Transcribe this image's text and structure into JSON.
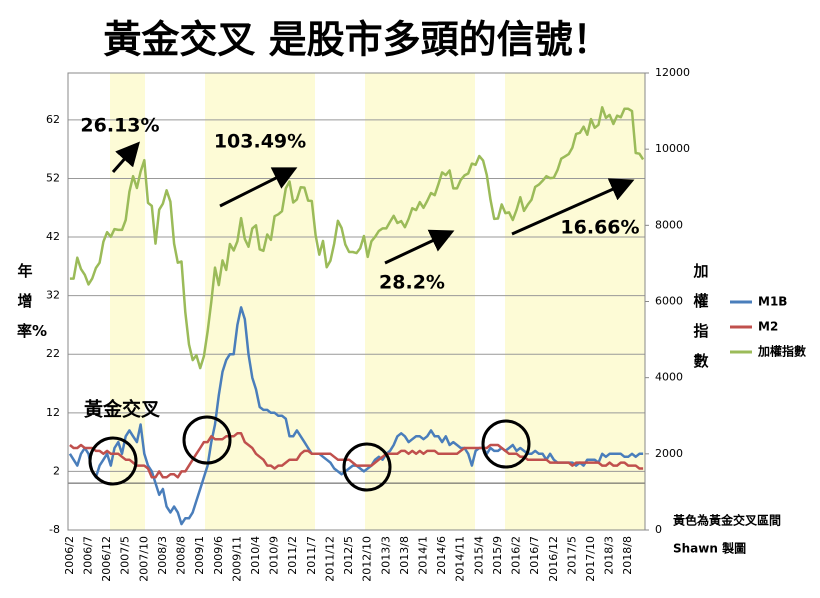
{
  "chart_data": {
    "type": "line",
    "title": "黃金交叉 是股市多頭的信號！",
    "y_label": "年增率%",
    "y2_label": "加權指數",
    "annotations": [
      "26.13%",
      "103.49%",
      "28.2%",
      "16.66%",
      "黃金交叉",
      "黃色為黃金交叉區間",
      "Shawn 製圖"
    ],
    "ylim": [
      -8,
      70
    ],
    "yticks": [
      -8,
      2,
      12,
      22,
      32,
      42,
      52,
      62
    ],
    "y2lim": [
      0,
      12000
    ],
    "y2ticks": [
      0,
      2000,
      4000,
      6000,
      8000,
      10000,
      12000
    ],
    "grid": true,
    "categories": [
      "2006/2",
      null,
      null,
      null,
      null,
      "2006/7",
      null,
      null,
      null,
      null,
      "2006/12",
      null,
      null,
      null,
      null,
      "2007/5",
      null,
      null,
      null,
      null,
      "2007/10",
      null,
      null,
      null,
      null,
      "2008/3",
      null,
      null,
      null,
      null,
      "2008/8",
      null,
      null,
      null,
      null,
      "2009/1",
      null,
      null,
      null,
      null,
      "2009/6",
      null,
      null,
      null,
      null,
      "2009/11",
      null,
      null,
      null,
      null,
      "2010/4",
      null,
      null,
      null,
      null,
      "2010/9",
      null,
      null,
      null,
      null,
      "2011/2",
      null,
      null,
      null,
      null,
      "2011/7",
      null,
      null,
      null,
      null,
      "2011/12",
      null,
      null,
      null,
      null,
      "2012/5",
      null,
      null,
      null,
      null,
      "2012/10",
      null,
      null,
      null,
      null,
      "2013/3",
      null,
      null,
      null,
      null,
      "2013/8",
      null,
      null,
      null,
      null,
      "2014/1",
      null,
      null,
      null,
      null,
      "2014/6",
      null,
      null,
      null,
      null,
      "2014/11",
      null,
      null,
      null,
      null,
      "2015/4",
      null,
      null,
      null,
      null,
      "2015/9",
      null,
      null,
      null,
      null,
      "2016/2",
      null,
      null,
      null,
      null,
      "2016/7",
      null,
      null,
      null,
      null,
      "2016/12",
      null,
      null,
      null,
      null,
      "2017/5",
      null,
      null,
      null,
      null,
      "2017/10",
      null,
      null,
      null,
      null,
      "2018/3",
      null,
      null,
      null,
      null,
      "2018/8",
      null,
      null,
      null,
      null
    ],
    "series": [
      {
        "name": "M1B",
        "color": "#4a7ebb",
        "values": [
          5,
          4,
          3,
          5,
          6,
          5,
          2,
          1,
          3,
          4,
          5,
          3,
          6,
          7,
          5,
          8,
          9,
          8,
          7,
          10,
          5,
          3,
          2,
          0,
          -2,
          -1,
          -4,
          -5,
          -4,
          -5,
          -7,
          -6,
          -6,
          -5,
          -3,
          -1,
          1,
          3,
          7,
          10,
          15,
          19,
          21,
          22,
          22,
          27,
          30,
          28,
          22,
          18,
          16,
          13,
          12.5,
          12.5,
          12,
          12,
          11.5,
          11.5,
          11,
          8,
          8,
          9,
          8,
          7,
          6,
          5,
          5,
          5,
          4.5,
          4,
          3.5,
          2.5,
          2,
          1.5,
          2,
          2.5,
          3,
          3,
          2.5,
          2,
          2.5,
          3,
          4,
          4.5,
          4,
          5,
          5.5,
          6.5,
          8,
          8.5,
          8,
          7,
          7.5,
          8,
          8,
          7.5,
          8,
          9,
          8,
          8,
          7,
          8,
          6.5,
          7,
          6.5,
          6,
          6,
          5,
          3,
          5.5,
          6,
          6,
          5,
          6,
          5.5,
          5.5,
          6,
          5.5,
          6,
          6.5,
          5.5,
          6,
          5.5,
          5,
          5,
          5.5,
          5,
          5,
          4,
          5,
          4,
          3.5,
          3.5,
          3.5,
          3.5,
          3.5,
          3,
          3.5,
          3,
          4,
          4,
          4,
          3.5,
          5,
          4.5,
          5,
          5,
          5,
          5,
          4.5,
          4.5,
          5,
          4.5,
          5,
          5
        ]
      },
      {
        "name": "M2",
        "color": "#c0504d",
        "values": [
          6.5,
          6,
          6,
          6.5,
          6,
          6,
          6,
          5.5,
          5.5,
          5,
          5.5,
          5,
          5,
          5,
          4.5,
          4,
          4,
          3.5,
          3,
          3,
          3,
          2.5,
          1,
          1,
          2,
          1,
          1,
          1.5,
          1.5,
          1,
          2,
          2,
          3,
          4,
          5,
          6,
          7,
          7,
          8,
          7.5,
          7.5,
          7.5,
          8,
          8,
          8,
          8.5,
          8.5,
          7,
          6.5,
          6,
          5,
          4.5,
          4,
          3,
          3,
          2.5,
          3,
          3,
          3.5,
          4,
          4,
          4,
          5,
          5.5,
          5.5,
          5,
          5,
          5,
          5,
          5,
          5,
          4.5,
          4,
          4,
          4,
          4,
          3.5,
          3,
          3,
          3,
          3,
          3,
          3.5,
          4,
          4.5,
          5,
          5,
          5,
          5,
          5.5,
          5.5,
          5,
          5.5,
          5,
          5.5,
          5,
          5.5,
          5.5,
          5.5,
          5,
          5,
          5,
          5,
          5,
          5,
          5.5,
          6,
          6,
          6,
          6,
          6,
          6,
          6,
          6.5,
          6.5,
          6.5,
          6,
          5.5,
          5,
          5,
          5,
          4.5,
          4.5,
          4,
          4,
          4,
          4,
          4,
          4,
          3.5,
          3.5,
          3.5,
          3.5,
          3.5,
          3.5,
          3,
          3.5,
          3.5,
          3.5,
          3.5,
          3.5,
          3.5,
          3.5,
          3,
          3,
          3.5,
          3,
          3,
          3.5,
          3.5,
          3,
          3,
          3,
          2.5,
          2.5
        ]
      },
      {
        "name": "加權指數",
        "color": "#9bbb59",
        "axis": "y2",
        "values": [
          6600,
          6600,
          7150,
          6850,
          6700,
          6450,
          6600,
          6880,
          7020,
          7570,
          7820,
          7700,
          7900,
          7880,
          7880,
          8140,
          8880,
          9290,
          8980,
          9410,
          9710,
          8590,
          8510,
          7520,
          8410,
          8570,
          8920,
          8620,
          7520,
          7020,
          7050,
          5720,
          4870,
          4460,
          4590,
          4250,
          4560,
          5210,
          5990,
          6890,
          6430,
          7080,
          6830,
          7510,
          7340,
          7580,
          8190,
          7640,
          7440,
          7920,
          8000,
          7370,
          7330,
          7760,
          7620,
          8240,
          8290,
          8370,
          8970,
          9150,
          8600,
          8680,
          9000,
          8990,
          8650,
          8640,
          7740,
          7230,
          7590,
          6900,
          7070,
          7520,
          8120,
          7930,
          7500,
          7300,
          7300,
          7270,
          7400,
          7720,
          7170,
          7580,
          7700,
          7850,
          7920,
          7920,
          8090,
          8250,
          8060,
          8110,
          7950,
          8170,
          8450,
          8400,
          8610,
          8460,
          8640,
          8850,
          8790,
          9080,
          9390,
          9320,
          9440,
          8970,
          8970,
          9190,
          9310,
          9360,
          9620,
          9590,
          9820,
          9700,
          9320,
          8670,
          8170,
          8180,
          8550,
          8320,
          8340,
          8140,
          8410,
          8740,
          8380,
          8540,
          8670,
          9010,
          9070,
          9170,
          9290,
          9240,
          9250,
          9450,
          9750,
          9810,
          9870,
          10040,
          10400,
          10430,
          10590,
          10380,
          10790,
          10560,
          10640,
          11100,
          10820,
          10900,
          10660,
          10880,
          10840,
          11060,
          11060,
          11000,
          9900,
          9880,
          9730
        ]
      }
    ]
  }
}
